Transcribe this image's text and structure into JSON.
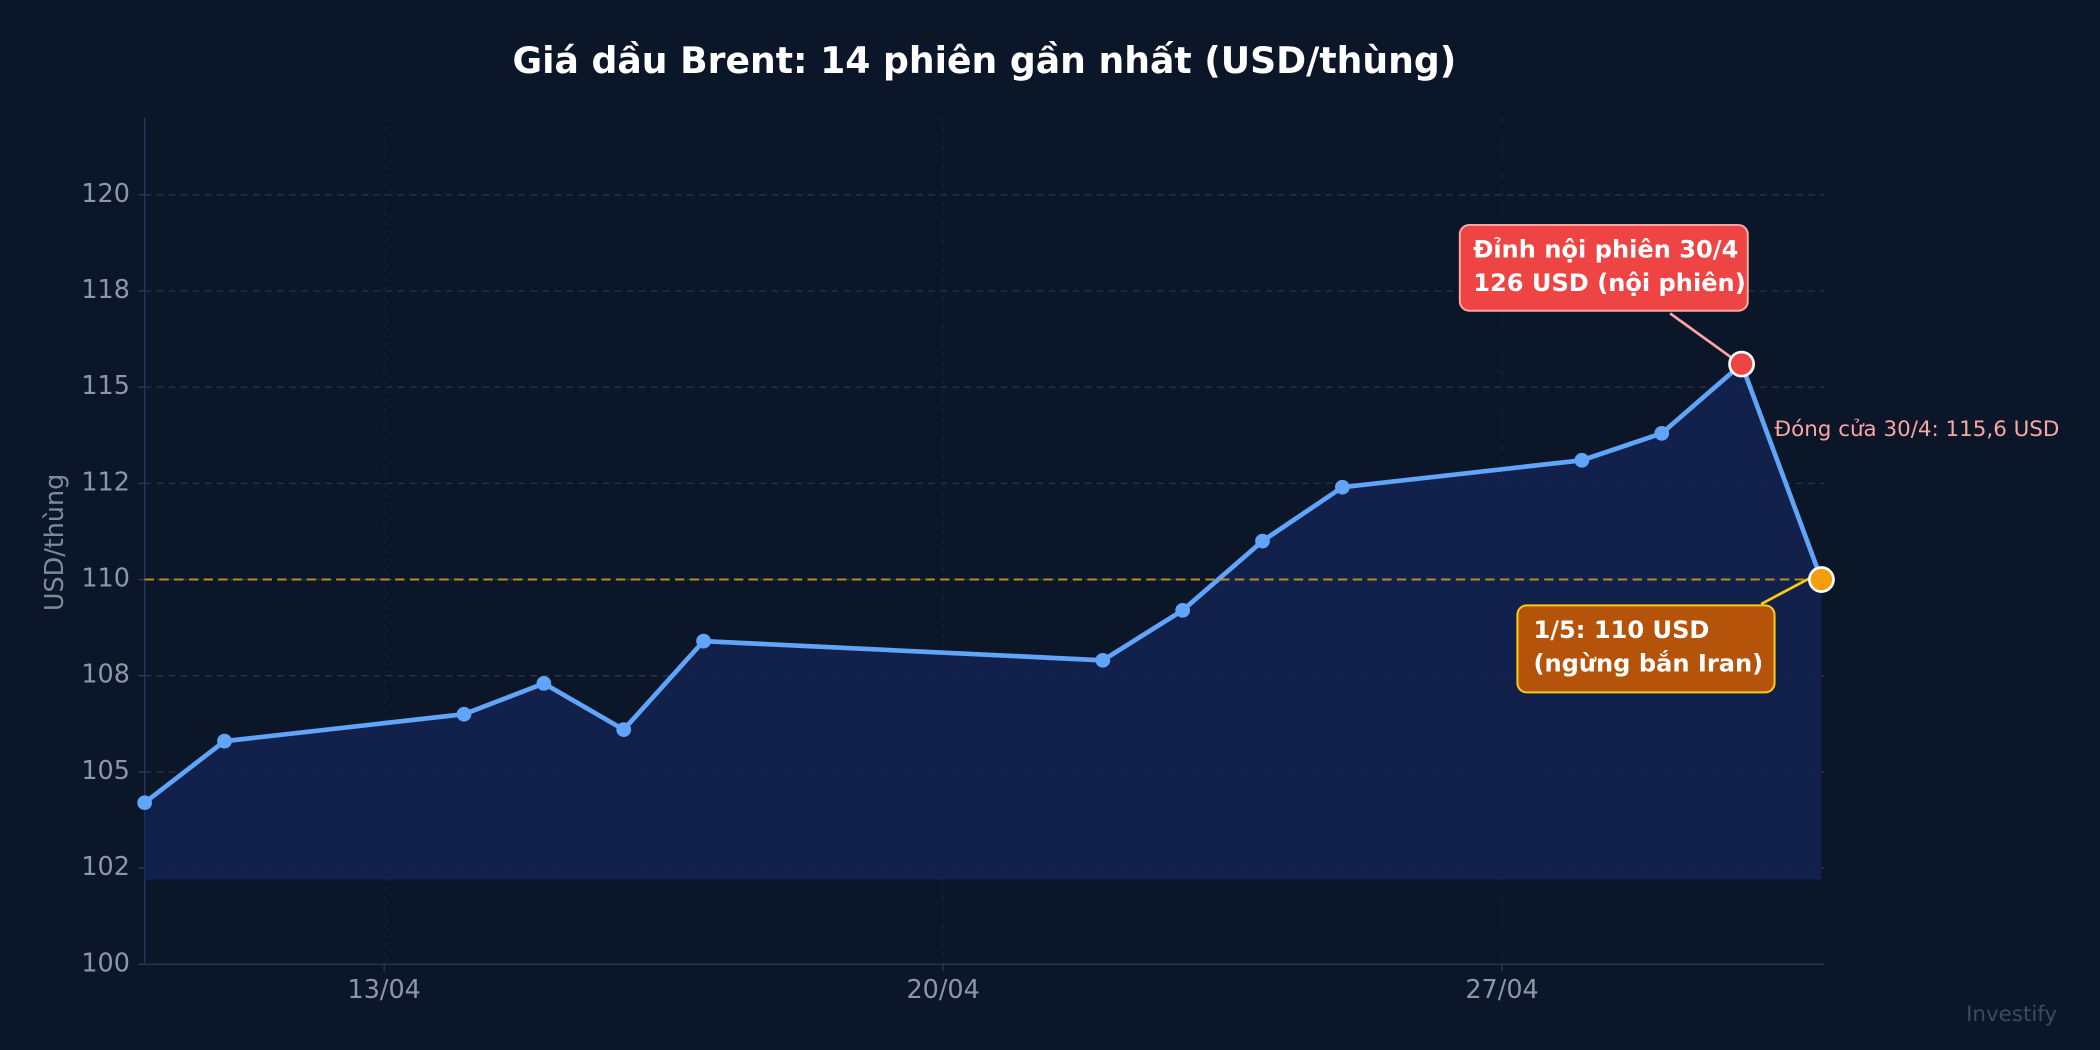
{
  "chart_data": {
    "type": "line",
    "title": "Giá dầu Brent: 14 phiên gần nhất (USD/thùng)",
    "ylabel": "USD/thùng",
    "x": [
      "10/04",
      "11/04",
      "14/04",
      "15/04",
      "16/04",
      "17/04",
      "22/04",
      "23/04",
      "24/04",
      "25/04",
      "28/04",
      "29/04",
      "30/04",
      "01/05"
    ],
    "series": [
      {
        "name": "Brent",
        "color": "#60a5fa",
        "values": [
          104.2,
          105.8,
          106.5,
          107.3,
          106.1,
          108.4,
          107.9,
          109.2,
          111.0,
          112.4,
          113.1,
          113.8,
          115.6,
          110.0
        ]
      }
    ],
    "xlim": [
      "10/04",
      "01/05"
    ],
    "xticks": [
      "13/04",
      "20/04",
      "27/04"
    ],
    "ylim": [
      100,
      122
    ],
    "yticks": [
      100,
      {
        "value": 102.5,
        "label": "102"
      },
      105,
      {
        "value": 107.5,
        "label": "108"
      },
      110,
      {
        "value": 112.5,
        "label": "112"
      },
      115,
      {
        "value": 117.5,
        "label": "118"
      },
      120
    ],
    "grid": true,
    "reference_line": {
      "y": 110,
      "color": "#d4a017"
    },
    "annotations": [
      {
        "lines": [
          "Đỉnh nội phiên 30/4",
          "126 USD (nội phiên)"
        ],
        "x": "30/04",
        "y": 115.6,
        "color": "#ef4444"
      },
      {
        "lines": [
          "Đóng cửa 30/4: 115,6 USD"
        ],
        "color": "#fca5a5"
      },
      {
        "lines": [
          "1/5: 110 USD",
          "(ngừng bắn Iran)"
        ],
        "x": "01/05",
        "y": 110.0,
        "color": "#f59e0b"
      }
    ],
    "watermark": "Investify"
  }
}
